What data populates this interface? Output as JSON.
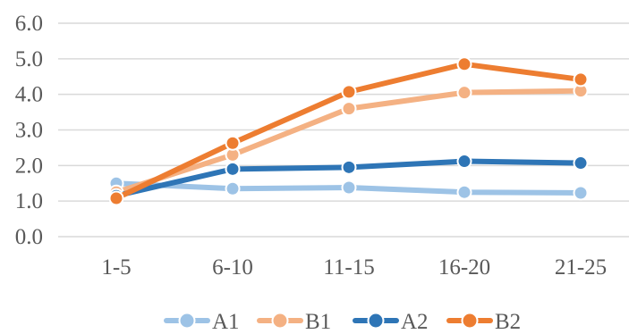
{
  "chart_data": {
    "type": "line",
    "title": "",
    "xlabel": "",
    "ylabel": "",
    "categories": [
      "1-5",
      "6-10",
      "11-15",
      "16-20",
      "21-25"
    ],
    "ylim": [
      0,
      6
    ],
    "yticks": [
      "0.0",
      "1.0",
      "2.0",
      "3.0",
      "4.0",
      "5.0",
      "6.0"
    ],
    "grid": true,
    "legend_position": "bottom",
    "series": [
      {
        "name": "A1",
        "color": "#9dc3e6",
        "values": [
          1.5,
          1.35,
          1.38,
          1.25,
          1.23
        ]
      },
      {
        "name": "B1",
        "color": "#f4b183",
        "values": [
          1.25,
          2.3,
          3.6,
          4.05,
          4.1
        ]
      },
      {
        "name": "A2",
        "color": "#2e75b6",
        "values": [
          1.15,
          1.9,
          1.95,
          2.12,
          2.07
        ]
      },
      {
        "name": "B2",
        "color": "#ed7d31",
        "values": [
          1.08,
          2.63,
          4.07,
          4.85,
          4.42
        ]
      }
    ]
  }
}
